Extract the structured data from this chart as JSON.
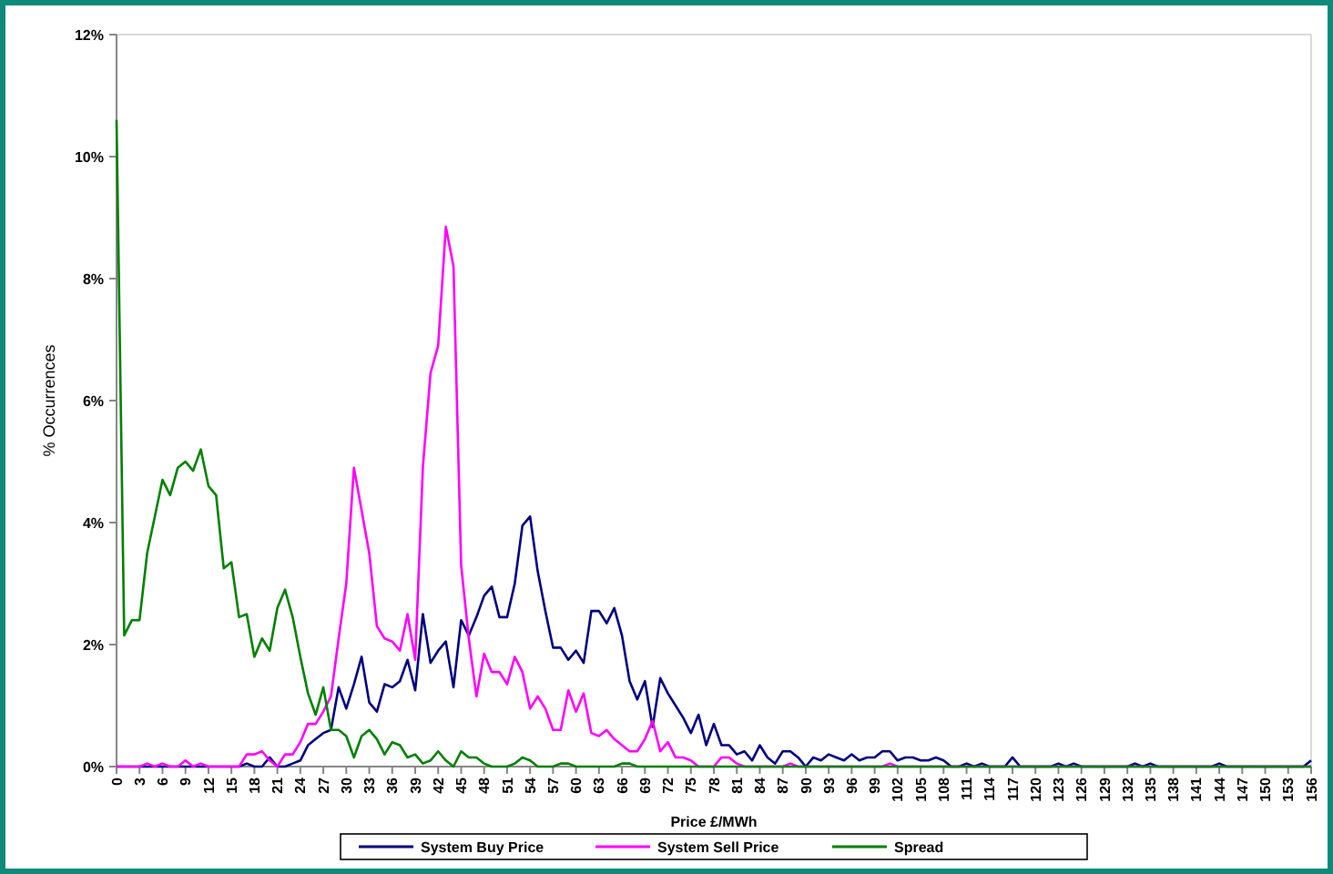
{
  "chart_data": {
    "type": "line",
    "xlabel": "Price £/MWh",
    "ylabel": "% Occurrences",
    "xlim": [
      0,
      156
    ],
    "xticks": [
      0,
      3,
      6,
      9,
      12,
      15,
      18,
      21,
      24,
      27,
      30,
      33,
      36,
      39,
      42,
      45,
      48,
      51,
      54,
      57,
      60,
      63,
      66,
      69,
      72,
      75,
      78,
      81,
      84,
      87,
      90,
      93,
      96,
      99,
      102,
      105,
      108,
      111,
      114,
      117,
      120,
      123,
      126,
      129,
      132,
      135,
      138,
      141,
      144,
      147,
      150,
      153,
      156
    ],
    "ylim": [
      0,
      12
    ],
    "yticks": [
      {
        "value": 0,
        "label": "0%"
      },
      {
        "value": 2,
        "label": "2%"
      },
      {
        "value": 4,
        "label": "4%"
      },
      {
        "value": 6,
        "label": "6%"
      },
      {
        "value": 8,
        "label": "8%"
      },
      {
        "value": 10,
        "label": "10%"
      },
      {
        "value": 12,
        "label": "12%"
      }
    ],
    "grid": false,
    "legend": "bottom",
    "marker": "none",
    "line_style": "solid",
    "series": [
      {
        "name": "System Buy Price",
        "color": "#000080",
        "x": [
          0,
          16,
          17,
          18,
          19,
          20,
          21,
          22,
          23,
          24,
          25,
          26,
          27,
          28,
          29,
          30,
          31,
          32,
          33,
          34,
          35,
          36,
          37,
          38,
          39,
          40,
          41,
          42,
          43,
          44,
          45,
          46,
          47,
          48,
          49,
          50,
          51,
          52,
          53,
          54,
          55,
          56,
          57,
          58,
          59,
          60,
          61,
          62,
          63,
          64,
          65,
          66,
          67,
          68,
          69,
          70,
          71,
          72,
          73,
          74,
          75,
          76,
          77,
          78,
          79,
          80,
          81,
          82,
          83,
          84,
          85,
          86,
          87,
          88,
          89,
          90,
          91,
          92,
          93,
          94,
          95,
          96,
          97,
          98,
          99,
          100,
          101,
          102,
          103,
          104,
          105,
          106,
          107,
          108,
          109,
          110,
          111,
          112,
          113,
          114,
          116,
          117,
          118,
          122,
          123,
          124,
          125,
          126,
          132,
          133,
          134,
          135,
          136,
          143,
          144,
          145,
          155,
          156
        ],
        "values": [
          0,
          0,
          0.05,
          0,
          0,
          0.15,
          0,
          0,
          0.05,
          0.1,
          0.35,
          0.45,
          0.55,
          0.6,
          1.3,
          0.95,
          1.35,
          1.8,
          1.05,
          0.9,
          1.35,
          1.3,
          1.4,
          1.75,
          1.25,
          2.5,
          1.7,
          1.9,
          2.05,
          1.3,
          2.4,
          2.15,
          2.45,
          2.8,
          2.95,
          2.45,
          2.45,
          3.0,
          3.95,
          4.1,
          3.2,
          2.55,
          1.95,
          1.95,
          1.75,
          1.9,
          1.7,
          2.55,
          2.55,
          2.35,
          2.6,
          2.15,
          1.4,
          1.1,
          1.4,
          0.65,
          1.45,
          1.2,
          1.0,
          0.8,
          0.55,
          0.85,
          0.35,
          0.7,
          0.35,
          0.35,
          0.2,
          0.25,
          0.1,
          0.35,
          0.15,
          0.05,
          0.25,
          0.25,
          0.15,
          0,
          0.15,
          0.1,
          0.2,
          0.15,
          0.1,
          0.2,
          0.1,
          0.15,
          0.15,
          0.25,
          0.25,
          0.1,
          0.15,
          0.15,
          0.1,
          0.1,
          0.15,
          0.1,
          0,
          0,
          0.05,
          0,
          0.05,
          0,
          0,
          0.15,
          0,
          0,
          0.05,
          0,
          0.05,
          0,
          0,
          0.05,
          0,
          0.05,
          0,
          0,
          0.05,
          0,
          0,
          0.1
        ]
      },
      {
        "name": "System Sell Price",
        "color": "#ff00ff",
        "x": [
          0,
          3,
          4,
          5,
          6,
          7,
          8,
          9,
          10,
          11,
          12,
          16,
          17,
          18,
          19,
          20,
          21,
          22,
          23,
          24,
          25,
          26,
          27,
          28,
          29,
          30,
          31,
          32,
          33,
          34,
          35,
          36,
          37,
          38,
          39,
          40,
          41,
          42,
          43,
          44,
          45,
          46,
          47,
          48,
          49,
          50,
          51,
          52,
          53,
          54,
          55,
          56,
          57,
          58,
          59,
          60,
          61,
          62,
          63,
          64,
          65,
          66,
          67,
          68,
          69,
          70,
          71,
          72,
          73,
          74,
          75,
          76,
          78,
          79,
          80,
          81,
          82,
          87,
          88,
          89,
          100,
          101,
          102,
          156
        ],
        "values": [
          0,
          0,
          0.05,
          0,
          0.05,
          0,
          0,
          0.1,
          0,
          0.05,
          0,
          0,
          0.2,
          0.2,
          0.25,
          0.1,
          0,
          0.2,
          0.2,
          0.4,
          0.7,
          0.7,
          0.9,
          1.15,
          2.1,
          3.0,
          4.9,
          4.2,
          3.5,
          2.3,
          2.1,
          2.05,
          1.9,
          2.5,
          1.75,
          4.9,
          6.45,
          6.9,
          8.85,
          8.2,
          3.3,
          2.1,
          1.15,
          1.85,
          1.55,
          1.55,
          1.35,
          1.8,
          1.55,
          0.95,
          1.15,
          0.95,
          0.6,
          0.6,
          1.25,
          0.9,
          1.2,
          0.55,
          0.5,
          0.6,
          0.45,
          0.35,
          0.25,
          0.25,
          0.45,
          0.75,
          0.25,
          0.4,
          0.15,
          0.15,
          0.1,
          0,
          0,
          0.15,
          0.15,
          0.05,
          0,
          0,
          0.05,
          0,
          0,
          0.05,
          0,
          0
        ]
      },
      {
        "name": "Spread",
        "color": "#008000",
        "x": [
          0,
          1,
          2,
          3,
          4,
          5,
          6,
          7,
          8,
          9,
          10,
          11,
          12,
          13,
          14,
          15,
          16,
          17,
          18,
          19,
          20,
          21,
          22,
          23,
          24,
          25,
          26,
          27,
          28,
          29,
          30,
          31,
          32,
          33,
          34,
          35,
          36,
          37,
          38,
          39,
          40,
          41,
          42,
          43,
          44,
          45,
          46,
          47,
          48,
          49,
          51,
          52,
          53,
          54,
          55,
          57,
          58,
          59,
          60,
          65,
          66,
          67,
          68,
          156
        ],
        "values": [
          10.6,
          2.15,
          2.4,
          2.4,
          3.5,
          4.1,
          4.7,
          4.45,
          4.9,
          5.0,
          4.85,
          5.2,
          4.6,
          4.45,
          3.25,
          3.35,
          2.45,
          2.5,
          1.8,
          2.1,
          1.9,
          2.6,
          2.9,
          2.45,
          1.8,
          1.2,
          0.85,
          1.3,
          0.6,
          0.6,
          0.5,
          0.15,
          0.5,
          0.6,
          0.45,
          0.2,
          0.4,
          0.35,
          0.15,
          0.2,
          0.05,
          0.1,
          0.25,
          0.1,
          0,
          0.25,
          0.15,
          0.15,
          0.05,
          0,
          0,
          0.05,
          0.15,
          0.1,
          0,
          0,
          0.05,
          0.05,
          0,
          0,
          0.05,
          0.05,
          0,
          0
        ]
      }
    ]
  }
}
